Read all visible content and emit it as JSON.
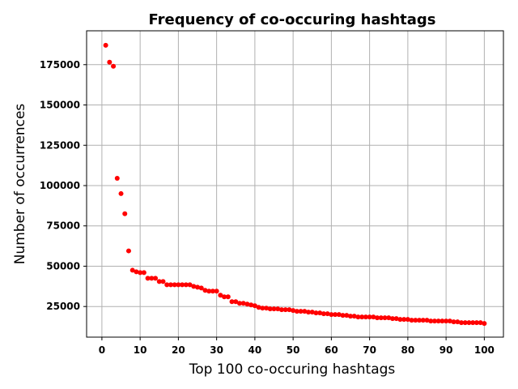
{
  "chart_data": {
    "type": "scatter",
    "title": "Frequency of co-occuring hashtags",
    "xlabel": "Top 100 co-occuring hashtags",
    "ylabel": "Number of occurrences",
    "xlim": [
      -4,
      105
    ],
    "ylim": [
      6000,
      196000
    ],
    "xticks": [
      0,
      10,
      20,
      30,
      40,
      50,
      60,
      70,
      80,
      90,
      100
    ],
    "yticks": [
      25000,
      50000,
      75000,
      100000,
      125000,
      150000,
      175000
    ],
    "grid": true,
    "marker_color": "#ff0000",
    "series": [
      {
        "x": [
          1,
          2,
          3,
          4,
          5,
          6,
          7,
          8,
          9,
          10,
          11,
          12,
          13,
          14,
          15,
          16,
          17,
          18,
          19,
          20,
          21,
          22,
          23,
          24,
          25,
          26,
          27,
          28,
          29,
          30,
          31,
          32,
          33,
          34,
          35,
          36,
          37,
          38,
          39,
          40,
          41,
          42,
          43,
          44,
          45,
          46,
          47,
          48,
          49,
          50,
          51,
          52,
          53,
          54,
          55,
          56,
          57,
          58,
          59,
          60,
          61,
          62,
          63,
          64,
          65,
          66,
          67,
          68,
          69,
          70,
          71,
          72,
          73,
          74,
          75,
          76,
          77,
          78,
          79,
          80,
          81,
          82,
          83,
          84,
          85,
          86,
          87,
          88,
          89,
          90,
          91,
          92,
          93,
          94,
          95,
          96,
          97,
          98,
          99,
          100
        ],
        "values": [
          187000,
          176500,
          174000,
          104500,
          95000,
          82500,
          59500,
          47500,
          46500,
          46000,
          46000,
          42500,
          42500,
          42500,
          40500,
          40500,
          38500,
          38500,
          38500,
          38500,
          38500,
          38500,
          38500,
          37500,
          37000,
          36500,
          35000,
          34500,
          34500,
          34500,
          32000,
          31000,
          31000,
          28000,
          28000,
          27000,
          27000,
          26500,
          26000,
          25500,
          24500,
          24000,
          24000,
          23500,
          23500,
          23500,
          23000,
          23000,
          23000,
          22500,
          22000,
          22000,
          22000,
          21500,
          21500,
          21000,
          21000,
          20500,
          20500,
          20000,
          20000,
          20000,
          19500,
          19500,
          19000,
          19000,
          18500,
          18500,
          18500,
          18500,
          18500,
          18000,
          18000,
          18000,
          18000,
          17500,
          17500,
          17000,
          17000,
          17000,
          16500,
          16500,
          16500,
          16500,
          16500,
          16000,
          16000,
          16000,
          16000,
          16000,
          16000,
          15500,
          15500,
          15000,
          15000,
          15000,
          15000,
          15000,
          15000,
          14500
        ]
      }
    ]
  }
}
